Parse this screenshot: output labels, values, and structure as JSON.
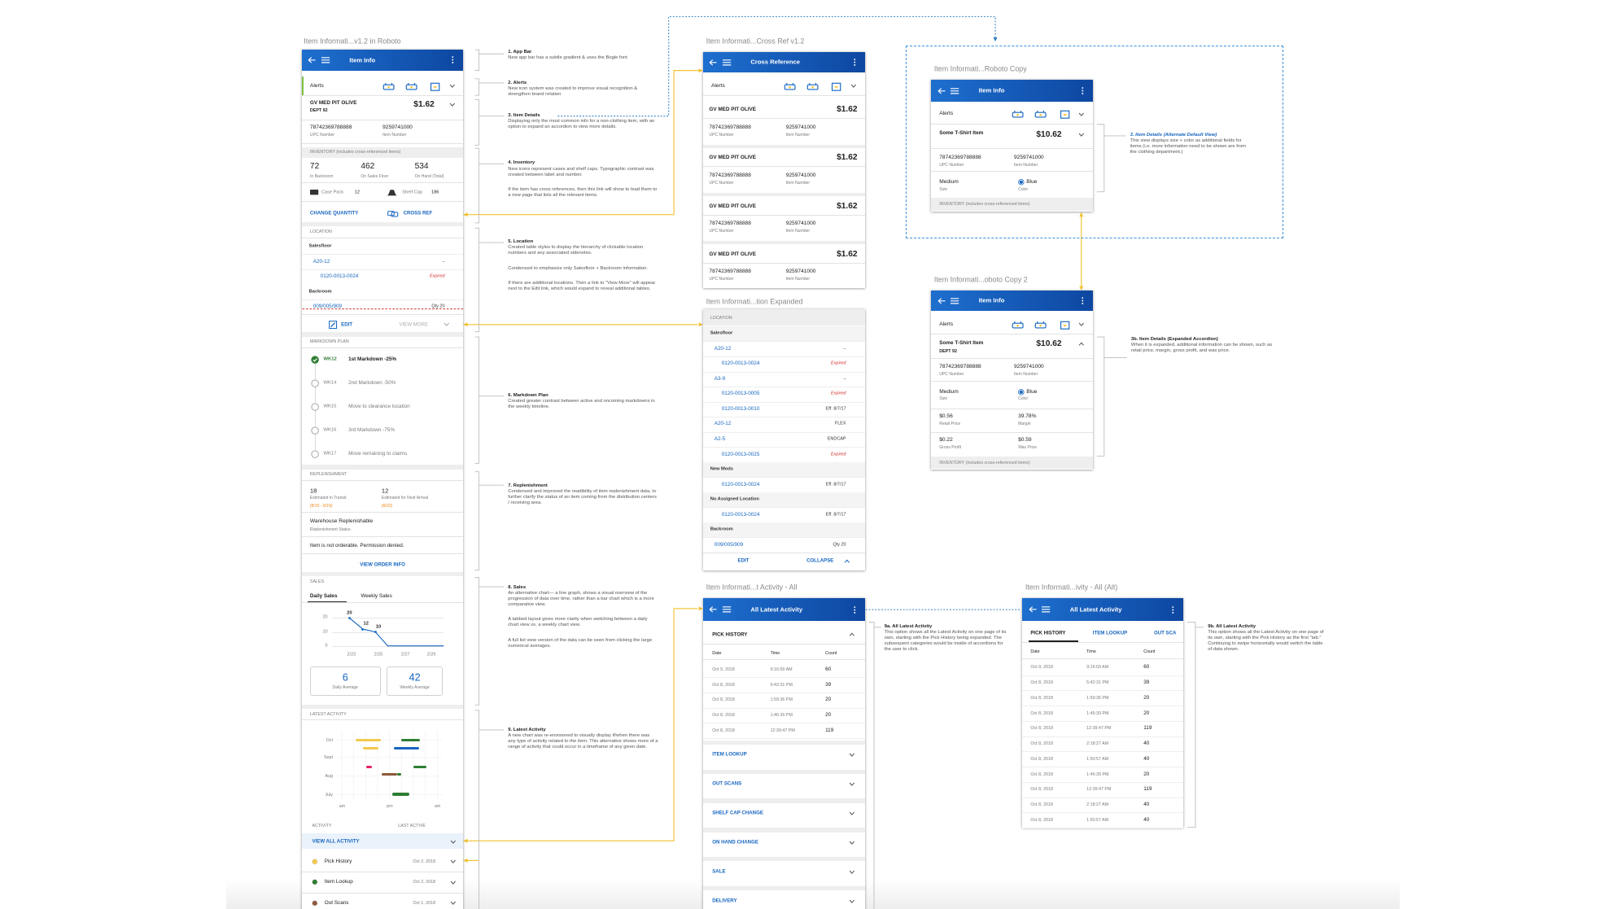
{
  "main": {
    "title": "Item Informati...v1.2 in Roboto",
    "app_bar": "Item Info",
    "alerts": "Alerts",
    "item": {
      "name": "GV MED PIT OLIVE",
      "dept": "DEPT 92",
      "price": "$1.62",
      "upc": "78742369788888",
      "upc_label": "UPC Number",
      "item_number": "9259741000",
      "item_number_label": "Item Number"
    },
    "inventory_header": "INVENTORY (includes cross-referenced items)",
    "inventory": [
      {
        "value": "72",
        "label": "In Backroom"
      },
      {
        "value": "462",
        "label": "On Sales Floor"
      },
      {
        "value": "534",
        "label": "On Hand (Total)"
      }
    ],
    "case_pack": {
      "label": "Case Pack",
      "value": "12"
    },
    "shelf_cap": {
      "label": "Shelf Cap",
      "value": "186"
    },
    "change_quantity": "CHANGE QUANTITY",
    "cross_ref": "CROSS REF",
    "location_header": "LOCATION",
    "location": [
      {
        "name": "Salesfloor",
        "items": [
          {
            "code": "A20-12",
            "note": "–",
            "children": [
              {
                "code": "0120-0013-0024",
                "note": "Expired",
                "color": "#d32f2f"
              }
            ]
          }
        ]
      },
      {
        "name": "Backroom",
        "items": [
          {
            "code": "009/005/909",
            "note": "Qty 20"
          }
        ]
      }
    ],
    "edit": "EDIT",
    "view_more": "VIEW MORE",
    "markdown_header": "MARKDOWN PLAN",
    "markdown": [
      {
        "week": "WK12",
        "text": "1st Markdown -25%",
        "checked": true
      },
      {
        "week": "WK14",
        "text": "2nd Markdown -50%"
      },
      {
        "week": "WK15",
        "text": "Move to clearance location"
      },
      {
        "week": "WK16",
        "text": "3rd Markdown -75%"
      },
      {
        "week": "WK17",
        "text": "Move remaining to claims"
      }
    ],
    "replenishment_header": "REPLENISHMENT",
    "replenishment": [
      {
        "value": "18",
        "label": "Estimated in Transit",
        "date": "(8/15 - 8/16)"
      },
      {
        "value": "12",
        "label": "Estimated for Next Arrival",
        "date": "(8/22)"
      }
    ],
    "status": "Warehouse Replenishable",
    "status_label": "Replenishment Status",
    "message": "Item is not orderable. Permission denied.",
    "order_link": "VIEW ORDER INFO",
    "sales_header": "SALES",
    "sales_tabs": [
      "Daily Sales",
      "Weekly Sales"
    ],
    "sales_chart": {
      "type": "line",
      "yticks": [
        0,
        10,
        20
      ],
      "x_labels": [
        "2/23",
        "2/25",
        "2/27",
        "2/29"
      ],
      "values": [
        20,
        12,
        10,
        0,
        0
      ]
    },
    "daily_average": {
      "value": "6",
      "label": "Daily Average"
    },
    "weekly_average": {
      "value": "42",
      "label": "Weekly Average"
    },
    "activity_header": "LATEST ACTIVITY",
    "months": [
      "Oct",
      "Sept",
      "Aug",
      "July"
    ],
    "times": [
      "am",
      "pm",
      "am"
    ],
    "activity_columns": [
      "ACTIVITY",
      "LAST ACTIVE"
    ],
    "view_all": "VIEW ALL ACTIVITY",
    "activity_list": [
      {
        "name": "Pick History",
        "date": "Oct 2, 2018",
        "color": "#f2c94c"
      },
      {
        "name": "Item Lookup",
        "date": "Oct 2, 2018",
        "color": "#2e7d32"
      },
      {
        "name": "Out Scans",
        "date": "Oct 1, 2018",
        "color": "#8d5a3b"
      }
    ]
  },
  "notes": [
    {
      "title": "1. App Bar",
      "body": [
        "New app bar has a subtle gradient & uses the Bogle font"
      ]
    },
    {
      "title": "2. Alerts",
      "body": [
        "New icon system was created to improve visual recognition & strengthen brand relation"
      ]
    },
    {
      "title": "3. Item Details",
      "body": [
        "Displaying only the most common info for a non-clothing item, with an option to expand an accordion to view more details."
      ]
    },
    {
      "title": "4. Inventory",
      "body": [
        "New icons represent cases and shelf caps. Typographic contrast was created between label and number.",
        "If the item has cross references, then this link will show to lead them to a new page that lists all the relevant items."
      ]
    },
    {
      "title": "5. Location",
      "body": [
        "Created table styles to display the hierarchy of clickable location numbers and any associated sidenotes.",
        "Condensed to emphasize only Salesfloor + Backroom information.",
        "If there are additional locations. Then a link to \"View More\" will appear next to the Edit link, which would expand to reveal additional tables."
      ]
    },
    {
      "title": "6. Markdown Plan",
      "body": [
        "Created greater contrast between active and oncoming markdowns in the weekly timeline."
      ]
    },
    {
      "title": "7. Replenishment",
      "body": [
        "Condensed and improved the readibility of item replenishment data, to further clarify the status of an item coming from the distribution centers / receiving area."
      ]
    },
    {
      "title": "8. Sales",
      "body": [
        "An alternative chart— a line graph, shows a visual overview of the progression of data over time, rather than a bar chart which is a more comparative view.",
        "A tabbed layout gives more clarity when switching between a daily chart view vs. a weekly chart view.",
        "A full list view version of the data can be seen from clicking the large numerical averages."
      ]
    },
    {
      "title": "9. Latest Activity",
      "body": [
        "A new chart was re-envisioned to visually display if/when there was any type of activity related to the item. This alternative shows more of a range of activity that could occur in a timeframe of any given date."
      ]
    }
  ],
  "cross_ref": {
    "title": "Item Informati...Cross Ref v1.2",
    "app_bar": "Cross Reference",
    "alerts": "Alerts",
    "items": [
      {
        "name": "GV MED PIT OLIVE",
        "price": "$1.62",
        "upc": "78742369788888",
        "upc_label": "UPC Number",
        "item_number": "9259741000",
        "item_number_label": "Item Number"
      },
      {
        "name": "GV MED PIT OLIVE",
        "price": "$1.62",
        "upc": "78742369788888",
        "upc_label": "UPC Number",
        "item_number": "9259741000",
        "item_number_label": "Item Number"
      },
      {
        "name": "GV MED PIT OLIVE",
        "price": "$1.62",
        "upc": "78742369788888",
        "upc_label": "UPC Number",
        "item_number": "9259741000",
        "item_number_label": "Item Number"
      },
      {
        "name": "GV MED PIT OLIVE",
        "price": "$1.62",
        "upc": "78742369788888",
        "upc_label": "UPC Number",
        "item_number": "9259741000",
        "item_number_label": "Item Number"
      }
    ]
  },
  "location_expanded": {
    "title": "Item Informati...tion Expanded",
    "header": "LOCATION",
    "sections": [
      {
        "name": "Salesfloor",
        "items": [
          {
            "code": "A20-12",
            "note": "–",
            "children": [
              {
                "code": "0120-0013-0024",
                "note": "Expired",
                "color": "#d32f2f"
              }
            ]
          },
          {
            "code": "A3-9",
            "note": "–",
            "children": [
              {
                "code": "0120-0013-0005",
                "note": "Expired",
                "color": "#d32f2f"
              },
              {
                "code": "0120-0013-0010",
                "note": "Eff. 8/7/17"
              }
            ]
          },
          {
            "code": "A20-12",
            "note": "FLEX"
          },
          {
            "code": "A2-5",
            "note": "ENDCAP",
            "children": [
              {
                "code": "0120-0013-0025",
                "note": "Expired",
                "color": "#d32f2f"
              }
            ]
          }
        ]
      },
      {
        "name": "New Mods",
        "children": [
          {
            "code": "0120-0013-0024",
            "note": "Eff. 8/7/17"
          }
        ]
      },
      {
        "name": "No Assigned Location",
        "children": [
          {
            "code": "0120-0013-0024",
            "note": "Eff. 8/7/17"
          }
        ]
      },
      {
        "name": "Backroom",
        "items": [
          {
            "code": "009/005/909",
            "note": "Qty 20"
          }
        ]
      }
    ],
    "edit": "EDIT",
    "collapse": "COLLAPSE"
  },
  "activity_all": {
    "title": "Item Informati...t Activity - All",
    "app_bar": "All Latest Activity",
    "open": "PICK HISTORY",
    "columns": [
      "Date",
      "Time",
      "Count"
    ],
    "rows": [
      [
        "Oct 9, 2018",
        "9:16:59 AM",
        "60"
      ],
      [
        "Oct 8, 2018",
        "5:42:31 PM",
        "39"
      ],
      [
        "Oct 8, 2018",
        "1:59:36 PM",
        "20"
      ],
      [
        "Oct 8, 2018",
        "1:46:39 PM",
        "20"
      ],
      [
        "Oct 8, 2018",
        "12:39:47 PM",
        "119"
      ]
    ],
    "accordions": [
      "ITEM LOOKUP",
      "OUT SCANS",
      "SHELF CAP CHANGE",
      "ON HAND CHANGE",
      "SALE",
      "DELIVERY"
    ]
  },
  "activity_alt": {
    "title": "Item Informati...ivity - All (Alt)",
    "app_bar": "All Latest Activity",
    "tabs": [
      "PICK HISTORY",
      "ITEM LOOKUP",
      "OUT SCA"
    ],
    "columns": [
      "Date",
      "Time",
      "Count"
    ],
    "rows": [
      [
        "Oct 9, 2018",
        "9:16:59 AM",
        "60"
      ],
      [
        "Oct 8, 2018",
        "5:42:31 PM",
        "39"
      ],
      [
        "Oct 8, 2018",
        "1:59:36 PM",
        "20"
      ],
      [
        "Oct 8, 2018",
        "1:46:39 PM",
        "20"
      ],
      [
        "Oct 8, 2018",
        "12:39:47 PM",
        "119"
      ],
      [
        "Oct 8, 2018",
        "2:18:27 AM",
        "40"
      ],
      [
        "Oct 8, 2018",
        "1:50:57 AM",
        "40"
      ],
      [
        "Oct 8, 2018",
        "1:46:39 PM",
        "20"
      ],
      [
        "Oct 8, 2018",
        "12:39:47 PM",
        "119"
      ],
      [
        "Oct 8, 2018",
        "2:18:27 AM",
        "40"
      ],
      [
        "Oct 8, 2018",
        "1:50:57 AM",
        "40"
      ]
    ]
  },
  "copy": {
    "title": "Item Informati...Roboto Copy",
    "app_bar": "Item Info",
    "alerts": "Alerts",
    "item": {
      "name": "Some T-Shirt Item",
      "price": "$10.62",
      "upc": "78742369788888",
      "upc_label": "UPC Number",
      "item_number": "9259741000",
      "item_number_label": "Item Number"
    },
    "size": {
      "value": "Medium",
      "label": "Size"
    },
    "color": {
      "value": "Blue",
      "label": "Color"
    },
    "inventory_header": "INVENTORY (includes cross-referenced items)"
  },
  "copy2": {
    "title": "Item Informati...oboto Copy 2",
    "app_bar": "Item Info",
    "alerts": "Alerts",
    "item": {
      "name": "Some T-Shirt Item",
      "dept": "DEPT 92",
      "price": "$10.62",
      "upc": "78742369788888",
      "upc_label": "UPC Number",
      "item_number": "9259741000",
      "item_number_label": "Item Number"
    },
    "size": {
      "value": "Medium",
      "label": "Size"
    },
    "color": {
      "value": "Blue",
      "label": "Color"
    },
    "extra": [
      {
        "value": "$0.56",
        "label": "Retail Price"
      },
      {
        "value": "39.78%",
        "label": "Margin"
      },
      {
        "value": "$0.22",
        "label": "Gross Profit"
      },
      {
        "value": "$0.59",
        "label": "Was Price"
      }
    ],
    "inventory_header": "INVENTORY (includes cross-referenced items)"
  },
  "side_notes": {
    "note_3": {
      "title": "3. Item Details (Alternate Default View)",
      "body": [
        "This view displays size + color as additional fields for items (i.e. more information need to be shown are from the clothing department.)"
      ]
    },
    "note_3b": {
      "title": "3b. Item Details (Expanded Accordion)",
      "body": [
        "When it is expanded, additional information can be shown, such as retail price, margin, gross profit, and was price."
      ]
    },
    "note_9a": {
      "title": "9a. All Latest Activity",
      "body": [
        "This option shows all the Latest Activity on one page of its own, starting with the Pick History being expanded. The subsequent categories would be inside of accordions for the user to click."
      ]
    },
    "note_9b": {
      "title": "9b. All Latest Activity",
      "body": [
        "This option shows all the Latest Activity on one page of its own, starting with the Pick History as the first \"tab.\" Continuing to swipe horizontally would switch the table of data shown."
      ]
    }
  }
}
